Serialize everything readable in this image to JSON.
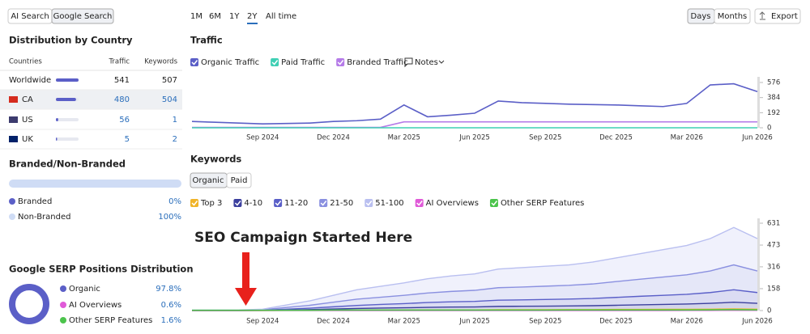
{
  "search_tabs": [
    "AI Search",
    "Google Search"
  ],
  "periods": [
    "1M",
    "6M",
    "1Y",
    "2Y",
    "All time"
  ],
  "granularity": [
    "Days",
    "Months"
  ],
  "export": "Export",
  "country": {
    "title": "Distribution by Country",
    "columns": [
      "Countries",
      "Traffic",
      "Keywords"
    ],
    "rows": [
      [
        "Worldwide",
        541,
        507
      ],
      [
        "CA",
        480,
        504
      ],
      [
        "US",
        56,
        1
      ],
      [
        "UK",
        5,
        2
      ]
    ]
  },
  "branded": {
    "title": "Branded/Non-Branded",
    "rows": [
      {
        "label": "Branded",
        "value": "0%"
      },
      {
        "label": "Non-Branded",
        "value": "100%"
      }
    ]
  },
  "serp": {
    "title": "Google SERP Positions Distribution",
    "rows": [
      {
        "label": "Organic",
        "value": "97.8%"
      },
      {
        "label": "AI Overviews",
        "value": "0.6%"
      },
      {
        "label": "Other SERP Features",
        "value": "1.6%"
      }
    ]
  },
  "notes": "Notes",
  "keyword_tabs": [
    "Organic",
    "Paid"
  ],
  "chart_data": [
    {
      "type": "line",
      "title": "Traffic",
      "categories": [
        null,
        null,
        null,
        "Sep 2024",
        null,
        null,
        "Dec 2024",
        null,
        null,
        "Mar 2025",
        null,
        null,
        "Jun 2025",
        null,
        null,
        "Sep 2025",
        null,
        null,
        "Dec 2025",
        null,
        null,
        "Mar 2026",
        null,
        null,
        "Jun 2026"
      ],
      "ylim": [
        0,
        648
      ],
      "yticks": [
        0,
        192,
        384,
        576
      ],
      "series": [
        {
          "name": "Organic Traffic",
          "color": "#5b5fc7",
          "values": [
            80,
            70,
            60,
            50,
            55,
            60,
            80,
            90,
            110,
            290,
            140,
            160,
            185,
            340,
            320,
            310,
            300,
            295,
            290,
            280,
            270,
            310,
            545,
            560,
            460
          ]
        },
        {
          "name": "Paid Traffic",
          "color": "#3fcfb4",
          "values": [
            0,
            0,
            0,
            0,
            0,
            0,
            0,
            0,
            0,
            0,
            0,
            0,
            0,
            0,
            0,
            0,
            0,
            0,
            0,
            0,
            0,
            0,
            0,
            0,
            0
          ]
        },
        {
          "name": "Branded Traffic",
          "color": "#b57be8",
          "values": [
            5,
            5,
            5,
            5,
            5,
            5,
            5,
            5,
            5,
            75,
            75,
            75,
            75,
            75,
            75,
            75,
            75,
            75,
            75,
            75,
            75,
            75,
            75,
            75,
            75
          ]
        }
      ]
    },
    {
      "type": "area",
      "title": "Keywords",
      "annotation": "SEO Campaign Started Here",
      "categories": [
        null,
        null,
        null,
        "Sep 2024",
        null,
        null,
        "Dec 2024",
        null,
        null,
        "Mar 2025",
        null,
        null,
        "Jun 2025",
        null,
        null,
        "Sep 2025",
        null,
        null,
        "Dec 2025",
        null,
        null,
        "Mar 2026",
        null,
        null,
        "Jun 2026"
      ],
      "ylim": [
        0,
        666
      ],
      "yticks": [
        0,
        158,
        316,
        473,
        631
      ],
      "series": [
        {
          "name": "Top 3",
          "color": "#f0b429",
          "values": [
            0,
            0,
            0,
            0,
            1,
            1,
            2,
            3,
            4,
            4,
            5,
            5,
            5,
            6,
            6,
            6,
            7,
            7,
            8,
            8,
            9,
            9,
            10,
            12,
            10
          ]
        },
        {
          "name": "4-10",
          "color": "#3b3f9e",
          "values": [
            0,
            0,
            0,
            1,
            3,
            6,
            9,
            12,
            14,
            16,
            18,
            20,
            21,
            24,
            25,
            26,
            26,
            28,
            30,
            33,
            35,
            38,
            42,
            48,
            42
          ]
        },
        {
          "name": "11-20",
          "color": "#5a5fc8",
          "values": [
            1,
            1,
            1,
            2,
            6,
            10,
            16,
            22,
            26,
            30,
            35,
            38,
            40,
            45,
            46,
            48,
            50,
            52,
            57,
            62,
            66,
            70,
            78,
            90,
            78
          ]
        },
        {
          "name": "21-50",
          "color": "#8a90e0",
          "values": [
            1,
            1,
            1,
            3,
            12,
            21,
            33,
            45,
            52,
            60,
            69,
            75,
            80,
            90,
            93,
            96,
            99,
            105,
            114,
            123,
            132,
            141,
            156,
            180,
            156
          ]
        },
        {
          "name": "51-100",
          "color": "#b9bff0",
          "values": [
            2,
            2,
            3,
            4,
            18,
            32,
            50,
            68,
            79,
            90,
            103,
            112,
            119,
            135,
            140,
            144,
            148,
            158,
            171,
            184,
            198,
            212,
            234,
            270,
            234
          ]
        },
        {
          "name": "AI Overviews",
          "color": "#e05ad8",
          "type": "line",
          "values": [
            0,
            0,
            0,
            0,
            0,
            0,
            0,
            0,
            0,
            0,
            0,
            0,
            0,
            0,
            0,
            0,
            0,
            0,
            0,
            0,
            0,
            1,
            1,
            2,
            2
          ]
        },
        {
          "name": "Other SERP Features",
          "color": "#4cc44c",
          "type": "line",
          "values": [
            2,
            2,
            2,
            2,
            2,
            2,
            3,
            3,
            3,
            3,
            3,
            3,
            3,
            3,
            3,
            3,
            4,
            4,
            4,
            4,
            4,
            4,
            5,
            6,
            5
          ]
        }
      ]
    }
  ]
}
